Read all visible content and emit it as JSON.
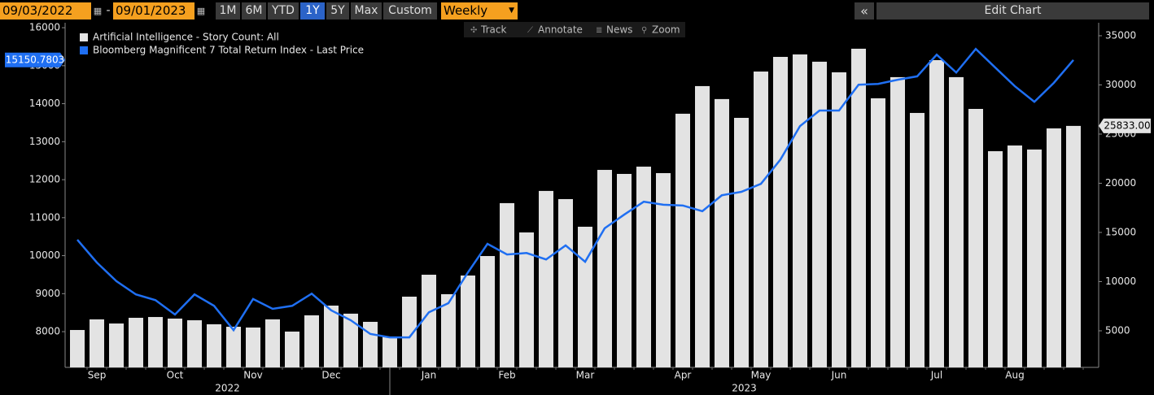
{
  "toolbar": {
    "start_date": "09/03/2022",
    "end_date": "09/01/2023",
    "ranges": [
      "1M",
      "6M",
      "YTD",
      "1Y",
      "5Y",
      "Max",
      "Custom"
    ],
    "active_range": 3,
    "frequency": "Weekly",
    "edit": "Edit Chart",
    "tools": [
      "Track",
      "Annotate",
      "News",
      "Zoom"
    ]
  },
  "chart_data": {
    "type": "combo",
    "categories": [
      null,
      "Sep",
      null,
      null,
      null,
      "Oct",
      null,
      null,
      null,
      "Nov",
      null,
      null,
      null,
      "Dec",
      null,
      null,
      null,
      null,
      "Jan",
      null,
      null,
      null,
      "Feb",
      null,
      null,
      null,
      "Mar",
      null,
      null,
      null,
      null,
      "Apr",
      null,
      null,
      null,
      "May",
      null,
      null,
      null,
      "Jun",
      null,
      null,
      null,
      null,
      "Jul",
      null,
      null,
      null,
      "Aug",
      null,
      null,
      null
    ],
    "years": [
      "2022",
      "2023"
    ],
    "series": [
      {
        "name": "Artificial Intelligence - Story Count: All",
        "type": "bar",
        "axis": "y2",
        "color": "#e3e3e3",
        "values": [
          5080,
          6160,
          5740,
          6320,
          6400,
          6240,
          6070,
          5660,
          5410,
          5330,
          6160,
          4920,
          6570,
          7560,
          6740,
          5910,
          4420,
          8470,
          10700,
          8720,
          10620,
          12600,
          17980,
          15000,
          19220,
          18390,
          15580,
          21360,
          20950,
          21690,
          21030,
          27070,
          29880,
          28560,
          26650,
          31360,
          32850,
          33100,
          32360,
          31280,
          33680,
          28640,
          30790,
          27150,
          32520,
          30790,
          27560,
          23260,
          23840,
          23430,
          25580,
          25833
        ],
        "value_labels": [
          null,
          null,
          null,
          null,
          null,
          null,
          null,
          null,
          null,
          null,
          null,
          null,
          null,
          null,
          null,
          null,
          null,
          null,
          null,
          null,
          null,
          null,
          null,
          null,
          null,
          null,
          null,
          null,
          null,
          null,
          null,
          null,
          null,
          null,
          null,
          null,
          null,
          null,
          null,
          null,
          null,
          null,
          null,
          null,
          null,
          null,
          null,
          null,
          null,
          null,
          null,
          "25833.00"
        ]
      },
      {
        "name": "Bloomberg Magnificent 7 Total Return Index - Last Price",
        "type": "line",
        "axis": "y",
        "color": "#1f6ff2",
        "values": [
          10420,
          9820,
          9330,
          8980,
          8830,
          8450,
          8980,
          8680,
          8040,
          8860,
          8600,
          8680,
          9000,
          8560,
          8300,
          7940,
          7850,
          7850,
          8510,
          8750,
          9560,
          10310,
          10030,
          10070,
          9900,
          10270,
          9840,
          10720,
          11080,
          11420,
          11340,
          11320,
          11170,
          11590,
          11680,
          11890,
          12530,
          13410,
          13820,
          13820,
          14500,
          14520,
          14630,
          14720,
          15290,
          14820,
          15440,
          14950,
          14460,
          14050,
          14550,
          15150.7803
        ]
      }
    ],
    "ylim": [
      7060,
      16130
    ],
    "yticks": [
      8000,
      9000,
      10000,
      11000,
      12000,
      13000,
      14000,
      15000,
      16000
    ],
    "y2lim": [
      1280,
      36320
    ],
    "y2ticks": [
      5000,
      10000,
      15000,
      20000,
      25000,
      30000,
      35000
    ],
    "grid": false,
    "legend": "top-left"
  }
}
